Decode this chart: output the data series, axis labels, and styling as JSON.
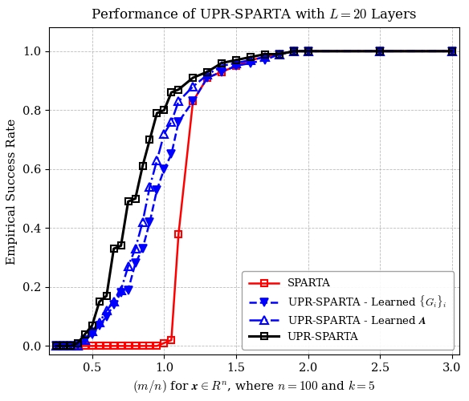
{
  "title": "Performance of UPR-SPARTA with $L = 20$ Layers",
  "xlabel": "$(m/n)$ for $\\boldsymbol{x} \\in R^n$, where $n = 100$ and $k = 5$",
  "ylabel": "Empirical Success Rate",
  "xlim": [
    0.2,
    3.05
  ],
  "ylim": [
    -0.03,
    1.08
  ],
  "xticks": [
    0.5,
    1.0,
    1.5,
    2.0,
    2.5,
    3.0
  ],
  "yticks": [
    0.0,
    0.2,
    0.4,
    0.6,
    0.8,
    1.0
  ],
  "sparta_x": [
    0.25,
    0.3,
    0.35,
    0.4,
    0.45,
    0.5,
    0.55,
    0.6,
    0.65,
    0.7,
    0.75,
    0.8,
    0.85,
    0.9,
    0.95,
    1.0,
    1.05,
    1.1,
    1.2,
    1.3,
    1.4,
    1.5,
    1.6,
    1.7,
    1.8,
    1.9,
    2.0,
    2.5,
    3.0
  ],
  "sparta_y": [
    0.0,
    0.0,
    0.0,
    0.0,
    0.0,
    0.0,
    0.0,
    0.0,
    0.0,
    0.0,
    0.0,
    0.0,
    0.0,
    0.0,
    0.0,
    0.01,
    0.02,
    0.38,
    0.83,
    0.91,
    0.93,
    0.95,
    0.97,
    0.98,
    0.99,
    1.0,
    1.0,
    1.0,
    1.0
  ],
  "upr_gi_x": [
    0.25,
    0.3,
    0.35,
    0.4,
    0.45,
    0.5,
    0.55,
    0.6,
    0.65,
    0.7,
    0.75,
    0.8,
    0.85,
    0.9,
    0.95,
    1.0,
    1.05,
    1.1,
    1.2,
    1.3,
    1.4,
    1.5,
    1.6,
    1.7,
    1.8,
    1.9,
    2.0,
    2.5,
    3.0
  ],
  "upr_gi_y": [
    0.0,
    0.0,
    0.0,
    0.0,
    0.02,
    0.04,
    0.07,
    0.1,
    0.14,
    0.18,
    0.19,
    0.28,
    0.33,
    0.42,
    0.53,
    0.6,
    0.65,
    0.76,
    0.83,
    0.91,
    0.93,
    0.95,
    0.96,
    0.97,
    0.99,
    1.0,
    1.0,
    1.0,
    1.0
  ],
  "upr_a_x": [
    0.25,
    0.3,
    0.35,
    0.4,
    0.45,
    0.5,
    0.55,
    0.6,
    0.65,
    0.7,
    0.75,
    0.8,
    0.85,
    0.9,
    0.95,
    1.0,
    1.05,
    1.1,
    1.2,
    1.3,
    1.4,
    1.5,
    1.6,
    1.7,
    1.8,
    1.9,
    2.0,
    2.5,
    3.0
  ],
  "upr_a_y": [
    0.0,
    0.0,
    0.0,
    0.0,
    0.02,
    0.05,
    0.08,
    0.12,
    0.15,
    0.19,
    0.27,
    0.33,
    0.42,
    0.54,
    0.63,
    0.72,
    0.76,
    0.83,
    0.88,
    0.92,
    0.95,
    0.96,
    0.97,
    0.98,
    0.99,
    1.0,
    1.0,
    1.0,
    1.0
  ],
  "upr_sparta_x": [
    0.25,
    0.3,
    0.35,
    0.4,
    0.45,
    0.5,
    0.55,
    0.6,
    0.65,
    0.7,
    0.75,
    0.8,
    0.85,
    0.9,
    0.95,
    1.0,
    1.05,
    1.1,
    1.2,
    1.3,
    1.4,
    1.5,
    1.6,
    1.7,
    1.8,
    1.9,
    2.0,
    2.5,
    3.0
  ],
  "upr_sparta_y": [
    0.0,
    0.0,
    0.0,
    0.01,
    0.04,
    0.07,
    0.15,
    0.17,
    0.33,
    0.34,
    0.49,
    0.5,
    0.61,
    0.7,
    0.79,
    0.8,
    0.86,
    0.87,
    0.91,
    0.93,
    0.96,
    0.97,
    0.98,
    0.99,
    0.99,
    1.0,
    1.0,
    1.0,
    1.0
  ],
  "color_sparta": "red",
  "color_upr_gi": "blue",
  "color_upr_a": "blue",
  "color_upr_sparta": "black",
  "legend_sparta": "SPARTA",
  "legend_upr_gi": "UPR-SPARTA - Learned $\\{G_i\\}_i$",
  "legend_upr_a": "UPR-SPARTA - Learned $\\boldsymbol{A}$",
  "legend_upr_sparta": "UPR-SPARTA"
}
